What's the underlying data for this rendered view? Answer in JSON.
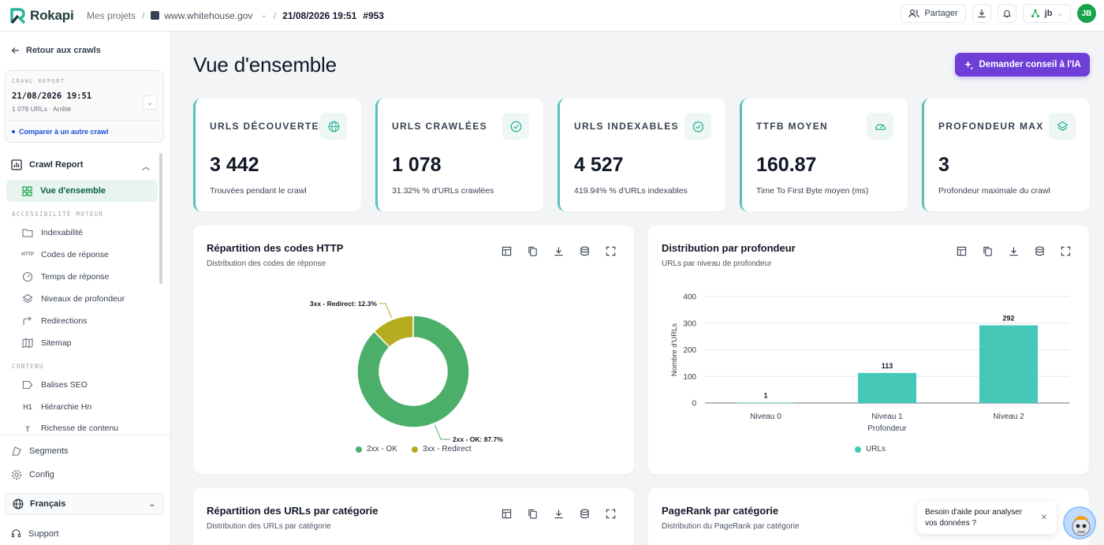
{
  "app": {
    "name": "Rokapi"
  },
  "breadcrumb": {
    "projects": "Mes projets",
    "site": "www.whitehouse.gov",
    "crawl_date": "21/08/2026 19:51",
    "crawl_id": "#953"
  },
  "topbar": {
    "share": "Partager",
    "user": "jb",
    "avatar": "JB"
  },
  "sidebar": {
    "back": "Retour aux crawls",
    "crawl_label": "CRAWL REPORT",
    "crawl_date": "21/08/2026 19:51",
    "crawl_status": "1 078 URLs · Arrêté",
    "compare": "Comparer à un autre crawl",
    "section": "Crawl Report",
    "active": "Vue d'ensemble",
    "group_access": "ACCESSIBILITÉ MOTEUR",
    "items_access": [
      "Indexabilité",
      "Codes de réponse",
      "Temps de réponse",
      "Niveaux de profondeur",
      "Redirections",
      "Sitemap"
    ],
    "group_content": "CONTENU",
    "items_content": [
      "Balises SEO",
      "Hiérarchie Hn",
      "Richesse de contenu"
    ],
    "segments": "Segments",
    "config": "Config",
    "language": "Français",
    "support": "Support"
  },
  "main": {
    "title": "Vue d'ensemble",
    "ai_button": "Demander conseil à l'IA",
    "kpis": [
      {
        "label": "URLS DÉCOUVERTES",
        "value": "3 442",
        "sub": "Trouvées pendant le crawl",
        "icon": "globe-icon"
      },
      {
        "label": "URLS CRAWLÉES",
        "value": "1 078",
        "sub": "31.32% % d'URLs crawlées",
        "icon": "check-circle-icon"
      },
      {
        "label": "URLS INDEXABLES",
        "value": "4 527",
        "sub": "419.94% % d'URLs indexables",
        "icon": "badge-check-icon"
      },
      {
        "label": "TTFB MOYEN",
        "value": "160.87",
        "sub": "Time To First Byte moyen (ms)",
        "icon": "gauge-icon"
      },
      {
        "label": "PROFONDEUR MAX",
        "value": "3",
        "sub": "Profondeur maximale du crawl",
        "icon": "layers-icon"
      }
    ],
    "cards": {
      "http": {
        "title": "Répartition des codes HTTP",
        "subtitle": "Distribution des codes de réponse"
      },
      "depth": {
        "title": "Distribution par profondeur",
        "subtitle": "URLs par niveau de profondeur"
      },
      "cat": {
        "title": "Répartition des URLs par catégorie",
        "subtitle": "Distribution des URLs par catégorie"
      },
      "pr": {
        "title": "PageRank par catégorie",
        "subtitle": "Distribution du PageRank par catégorie"
      }
    },
    "help": {
      "text1": "Besoin d'aide pour analyser",
      "text2": "vos données ?"
    }
  },
  "chart_data": [
    {
      "type": "pie",
      "categories": [
        "2xx - OK",
        "3xx - Redirect"
      ],
      "values": [
        87.7,
        12.3
      ],
      "labels": [
        "2xx - OK: 87.7%",
        "3xx - Redirect: 12.3%"
      ],
      "colors": [
        "#4caf69",
        "#b5ad1f"
      ],
      "legend": "bottom"
    },
    {
      "type": "bar",
      "categories": [
        "Niveau 0",
        "Niveau 1",
        "Niveau 2"
      ],
      "series": [
        {
          "name": "URLs",
          "values": [
            1,
            113,
            292
          ]
        }
      ],
      "xlabel": "Profondeur",
      "ylabel": "Nombre d'URLs",
      "ylim": [
        0,
        400
      ],
      "yticks": [
        0,
        100,
        200,
        300,
        400
      ],
      "color": "#45c8b8",
      "grid": true,
      "legend": "bottom"
    }
  ]
}
